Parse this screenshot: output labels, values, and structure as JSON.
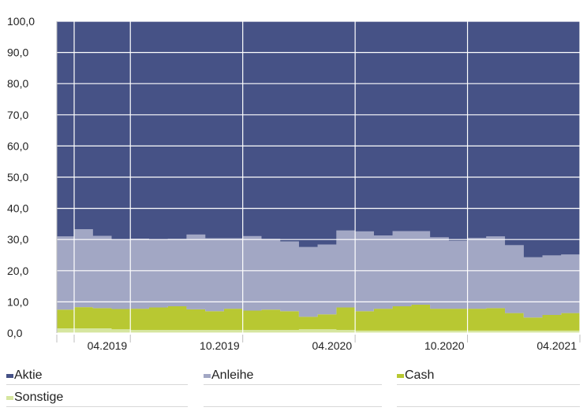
{
  "chart_data": {
    "type": "area",
    "stacked": true,
    "step": true,
    "x": [
      "01.2019",
      "02.2019",
      "03.2019",
      "04.2019",
      "05.2019",
      "06.2019",
      "07.2019",
      "08.2019",
      "09.2019",
      "10.2019",
      "11.2019",
      "12.2019",
      "01.2020",
      "02.2020",
      "03.2020",
      "04.2020",
      "05.2020",
      "06.2020",
      "07.2020",
      "08.2020",
      "09.2020",
      "10.2020",
      "11.2020",
      "12.2020",
      "01.2021",
      "02.2021",
      "03.2021",
      "04.2021"
    ],
    "x_tick_labels": [
      "04.2019",
      "10.2019",
      "04.2020",
      "10.2020",
      "04.2021"
    ],
    "y_tick_labels": [
      "0,0",
      "10,0",
      "20,0",
      "30,0",
      "40,0",
      "50,0",
      "60,0",
      "70,0",
      "80,0",
      "90,0",
      "100,0"
    ],
    "ylim": [
      0,
      100
    ],
    "grid": true,
    "legend_position": "bottom",
    "series": [
      {
        "name": "Sonstige",
        "color": "#d6e6a0",
        "values": [
          1.5,
          1.5,
          1.5,
          1.2,
          1.0,
          1.0,
          1.0,
          1.0,
          1.0,
          1.0,
          1.0,
          1.0,
          1.0,
          1.2,
          1.2,
          1.0,
          0.8,
          0.8,
          0.8,
          0.8,
          0.8,
          0.8,
          0.8,
          0.8,
          0.8,
          0.8,
          0.8,
          0.8
        ]
      },
      {
        "name": "Cash",
        "color": "#b8c832",
        "values": [
          6.0,
          6.8,
          6.5,
          6.5,
          6.8,
          7.2,
          7.6,
          6.6,
          6.0,
          6.8,
          6.2,
          6.5,
          6.0,
          4.0,
          4.8,
          7.2,
          6.2,
          7.0,
          7.8,
          8.3,
          7.0,
          7.0,
          7.0,
          7.2,
          5.6,
          4.2,
          5.0,
          5.6
        ]
      },
      {
        "name": "Anleihe",
        "color": "#a2a7c4",
        "values": [
          23.5,
          25.0,
          23.2,
          22.3,
          22.5,
          21.8,
          21.6,
          24.0,
          23.4,
          22.6,
          23.9,
          22.7,
          22.4,
          22.4,
          22.4,
          24.7,
          25.6,
          23.5,
          24.1,
          23.6,
          22.9,
          21.8,
          22.7,
          23.0,
          21.8,
          19.3,
          19.1,
          18.8
        ]
      },
      {
        "name": "Aktie",
        "color": "#465286",
        "values": [
          69.0,
          66.7,
          68.8,
          70.0,
          69.7,
          70.0,
          69.8,
          68.4,
          69.6,
          69.6,
          68.9,
          69.8,
          70.6,
          72.4,
          71.6,
          67.1,
          67.4,
          68.7,
          67.3,
          67.3,
          69.3,
          70.4,
          69.5,
          69.0,
          71.8,
          75.7,
          75.1,
          74.8
        ]
      }
    ]
  },
  "legend": [
    {
      "label": "Aktie",
      "color": "#465286"
    },
    {
      "label": "Anleihe",
      "color": "#a2a7c4"
    },
    {
      "label": "Cash",
      "color": "#b8c832"
    },
    {
      "label": "Sonstige",
      "color": "#d6e6a0"
    }
  ]
}
